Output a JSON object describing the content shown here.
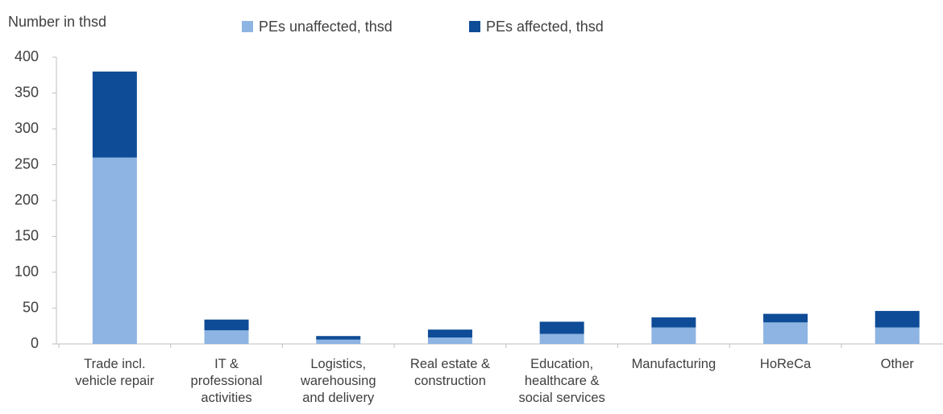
{
  "chart_data": {
    "type": "stacked_bar",
    "y_label": "Number in thsd",
    "categories": [
      "Trade incl.\nvehicle repair",
      "IT &\nprofessional\nactivities",
      "Logistics,\nwarehousing\nand delivery",
      "Real estate &\nconstruction",
      "Education,\nhealthcare &\nsocial services",
      "Manufacturing",
      "HoReCa",
      "Other"
    ],
    "series": [
      {
        "name": "PEs unaffected, thsd",
        "color": "#8db4e2",
        "values": [
          260,
          19,
          6,
          9,
          14,
          23,
          30,
          23
        ]
      },
      {
        "name": "PEs affected, thsd",
        "color": "#0f4c97",
        "values": [
          120,
          15,
          5,
          11,
          17,
          14,
          12,
          23
        ]
      }
    ],
    "ylim": [
      0,
      400
    ],
    "yticks": [
      0,
      50,
      100,
      150,
      200,
      250,
      300,
      350,
      400
    ],
    "grid": false
  }
}
